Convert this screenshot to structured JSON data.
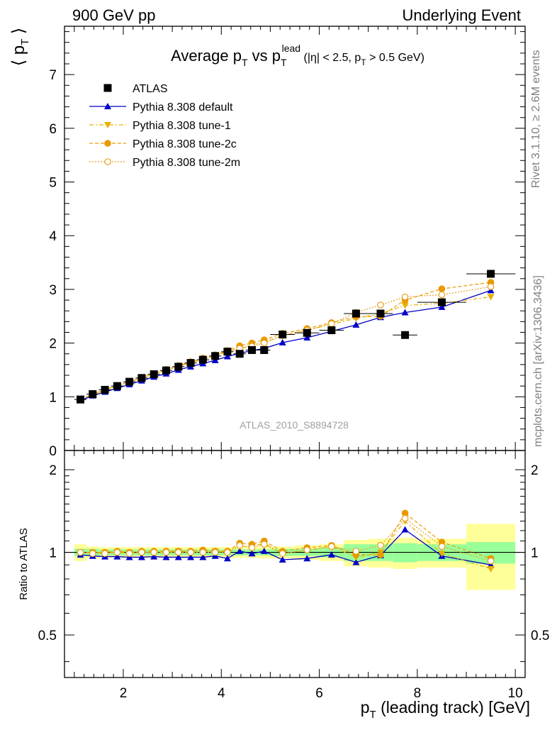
{
  "header": {
    "left": "900 GeV pp",
    "right": "Underlying Event"
  },
  "side_labels": {
    "rivet": "Rivet 3.1.10, ≥ 2.6M events",
    "mcplots": "mcplots.cern.ch [arXiv:1306.3436]"
  },
  "watermark": "ATLAS_2010_S8894728",
  "chart_data": [
    {
      "type": "scatter",
      "title": "Average p_T vs p_T^lead (|η| < 2.5, p_T > 0.5 GeV)",
      "title_parts": {
        "a": "Average p",
        "a_sub": "T",
        "b": " vs p",
        "b_sub": "T",
        "b_sup": "lead",
        "c": " (|η| < 2.5, p",
        "c_sub": "T",
        "d": " > 0.5 GeV)"
      },
      "ylabel": "⟨ p_T ⟩",
      "ylabel_parts": {
        "open": "⟨ p",
        "sub": "T",
        "close": " ⟩"
      },
      "xlim": [
        0.8,
        10.2
      ],
      "ylim": [
        0,
        7.9
      ],
      "y_ticks": [
        "0",
        "1",
        "2",
        "3",
        "4",
        "5",
        "6",
        "7"
      ],
      "legend_position": "top-left",
      "legend": [
        "ATLAS",
        "Pythia 8.308 default",
        "Pythia 8.308 tune-1",
        "Pythia 8.308 tune-2c",
        "Pythia 8.308 tune-2m"
      ],
      "x": [
        1.125,
        1.375,
        1.625,
        1.875,
        2.125,
        2.375,
        2.625,
        2.875,
        3.125,
        3.375,
        3.625,
        3.875,
        4.125,
        4.375,
        4.625,
        4.875,
        5.25,
        5.75,
        6.25,
        6.75,
        7.25,
        7.75,
        8.5,
        9.5
      ],
      "x_err": [
        0.125,
        0.125,
        0.125,
        0.125,
        0.125,
        0.125,
        0.125,
        0.125,
        0.125,
        0.125,
        0.125,
        0.125,
        0.125,
        0.125,
        0.125,
        0.125,
        0.25,
        0.25,
        0.25,
        0.25,
        0.25,
        0.25,
        0.5,
        0.5
      ],
      "series": [
        {
          "name": "ATLAS",
          "color": "#000000",
          "values": [
            0.95,
            1.05,
            1.13,
            1.2,
            1.28,
            1.35,
            1.42,
            1.49,
            1.56,
            1.63,
            1.69,
            1.76,
            1.84,
            1.8,
            1.87,
            1.87,
            2.16,
            2.19,
            2.24,
            2.55,
            2.55,
            2.15,
            2.76,
            3.29
          ]
        },
        {
          "name": "Pythia 8.308 default",
          "color": "#0000c8",
          "values": [
            0.93,
            1.02,
            1.09,
            1.16,
            1.23,
            1.3,
            1.37,
            1.43,
            1.5,
            1.56,
            1.62,
            1.68,
            1.75,
            1.81,
            1.86,
            1.9,
            2.01,
            2.1,
            2.22,
            2.34,
            2.48,
            2.57,
            2.67,
            2.98
          ]
        },
        {
          "name": "Pythia 8.308 tune-1",
          "color": "#e8b000",
          "values": [
            0.95,
            1.05,
            1.13,
            1.21,
            1.28,
            1.36,
            1.43,
            1.5,
            1.57,
            1.64,
            1.7,
            1.77,
            1.84,
            1.9,
            1.96,
            2.02,
            2.14,
            2.24,
            2.35,
            2.46,
            2.55,
            2.7,
            2.74,
            2.86
          ]
        },
        {
          "name": "Pythia 8.308 tune-2c",
          "color": "#e89a00",
          "values": [
            0.95,
            1.05,
            1.13,
            1.21,
            1.28,
            1.36,
            1.43,
            1.51,
            1.58,
            1.65,
            1.72,
            1.78,
            1.86,
            1.95,
            2.0,
            2.06,
            2.18,
            2.27,
            2.38,
            2.49,
            2.5,
            2.8,
            3.01,
            3.13
          ]
        },
        {
          "name": "Pythia 8.308 tune-2m",
          "color": "#e8a020",
          "values": [
            0.95,
            1.04,
            1.12,
            1.2,
            1.27,
            1.35,
            1.42,
            1.49,
            1.56,
            1.63,
            1.69,
            1.76,
            1.84,
            1.9,
            1.94,
            2.0,
            2.14,
            2.24,
            2.36,
            2.57,
            2.71,
            2.86,
            2.9,
            3.05
          ]
        }
      ]
    },
    {
      "type": "scatter",
      "ylabel": "Ratio to ATLAS",
      "xlabel": "p_T (leading track) [GeV]",
      "xlabel_parts": {
        "a": "p",
        "sub": "T",
        "b": " (leading track) [GeV]"
      },
      "xlim": [
        0.8,
        10.2
      ],
      "ylim": [
        0.35,
        2.35
      ],
      "x_ticks": [
        "2",
        "4",
        "6",
        "8",
        "10"
      ],
      "y_ticks": [
        "0.5",
        "1",
        "2"
      ],
      "y_scale": "log",
      "band_inner": [
        0.03,
        0.03,
        0.025,
        0.025,
        0.025,
        0.025,
        0.025,
        0.025,
        0.025,
        0.025,
        0.025,
        0.025,
        0.025,
        0.025,
        0.025,
        0.025,
        0.03,
        0.03,
        0.04,
        0.07,
        0.07,
        0.08,
        0.07,
        0.09
      ],
      "band_outer": [
        0.07,
        0.05,
        0.045,
        0.045,
        0.045,
        0.045,
        0.045,
        0.045,
        0.045,
        0.045,
        0.045,
        0.045,
        0.045,
        0.045,
        0.045,
        0.05,
        0.05,
        0.06,
        0.07,
        0.11,
        0.12,
        0.13,
        0.12,
        0.27
      ],
      "series": [
        {
          "name": "Pythia 8.308 default",
          "color": "#0000c8",
          "values": [
            0.98,
            0.97,
            0.965,
            0.965,
            0.96,
            0.96,
            0.965,
            0.96,
            0.96,
            0.96,
            0.96,
            0.97,
            0.95,
            1.01,
            0.99,
            1.01,
            0.94,
            0.95,
            0.98,
            0.92,
            0.975,
            1.21,
            0.97,
            0.9
          ]
        },
        {
          "name": "Pythia 8.308 tune-1",
          "color": "#e8b000",
          "values": [
            1.0,
            1.0,
            1.0,
            1.0,
            1.0,
            1.0,
            1.0,
            1.0,
            1.01,
            1.0,
            1.01,
            1.01,
            1.0,
            1.05,
            1.05,
            1.08,
            0.99,
            1.02,
            1.05,
            0.96,
            1.0,
            1.3,
            0.99,
            0.87
          ]
        },
        {
          "name": "Pythia 8.308 tune-2c",
          "color": "#e89a00",
          "values": [
            1.0,
            1.0,
            1.0,
            1.01,
            1.0,
            1.01,
            1.01,
            1.01,
            1.01,
            1.01,
            1.02,
            1.01,
            1.01,
            1.08,
            1.07,
            1.1,
            1.01,
            1.04,
            1.06,
            0.98,
            0.98,
            1.39,
            1.09,
            0.95
          ]
        },
        {
          "name": "Pythia 8.308 tune-2m",
          "color": "#e8a020",
          "values": [
            1.0,
            0.99,
            0.99,
            1.0,
            0.99,
            1.0,
            1.0,
            1.0,
            1.0,
            1.0,
            1.0,
            1.0,
            1.0,
            1.06,
            1.04,
            1.07,
            0.99,
            1.02,
            1.05,
            1.01,
            1.06,
            1.33,
            1.05,
            0.93
          ]
        }
      ]
    }
  ]
}
